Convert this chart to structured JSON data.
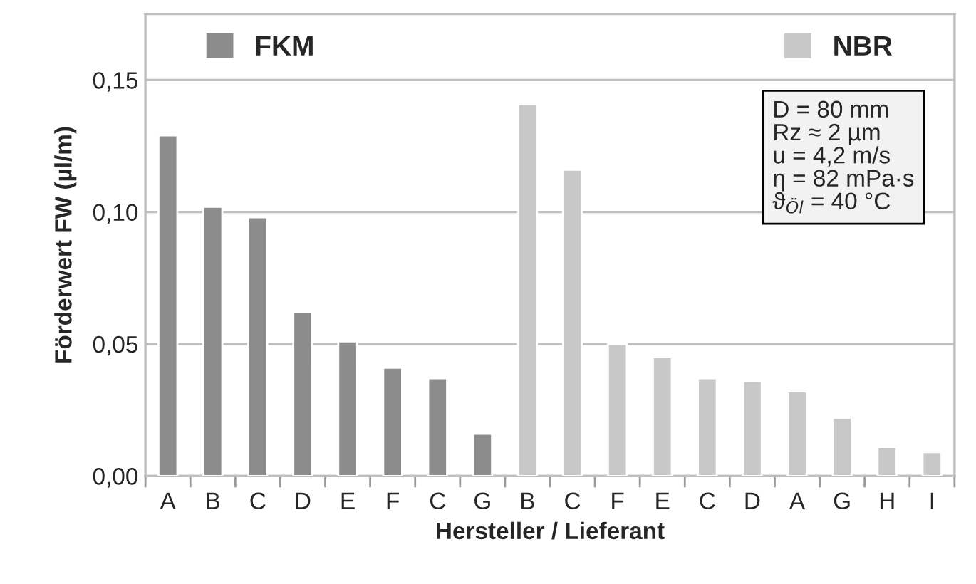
{
  "chart_data": {
    "type": "bar",
    "categories": [
      "A",
      "B",
      "C",
      "D",
      "E",
      "F",
      "C",
      "G",
      "B",
      "C",
      "F",
      "E",
      "C",
      "D",
      "A",
      "G",
      "H",
      "I"
    ],
    "series": [
      {
        "name": "FKM",
        "color": "#8c8c8c",
        "values": [
          0.129,
          0.102,
          0.098,
          0.062,
          0.051,
          0.041,
          0.037,
          0.016,
          null,
          null,
          null,
          null,
          null,
          null,
          null,
          null,
          null,
          null
        ]
      },
      {
        "name": "NBR",
        "color": "#c8c8c8",
        "values": [
          null,
          null,
          null,
          null,
          null,
          null,
          null,
          null,
          0.141,
          0.116,
          0.05,
          0.045,
          0.037,
          0.036,
          0.032,
          0.022,
          0.011,
          0.009
        ]
      }
    ],
    "xlabel": "Hersteller / Lieferant",
    "ylabel": "Förderwert FW (µl/m)",
    "ylim": [
      0,
      0.175
    ],
    "yticks": [
      {
        "value": 0,
        "label": "0,00"
      },
      {
        "value": 0.05,
        "label": "0,05"
      },
      {
        "value": 0.1,
        "label": "0,10"
      },
      {
        "value": 0.15,
        "label": "0,15"
      }
    ],
    "grid": "y",
    "legend": "top",
    "annotations": [
      "D = 80 mm\nRz ≈ 2 µm\nu = 4,2 m/s\nη = 82 mPa·s\nϑ$_{Öl}$ = 40 °C"
    ]
  }
}
